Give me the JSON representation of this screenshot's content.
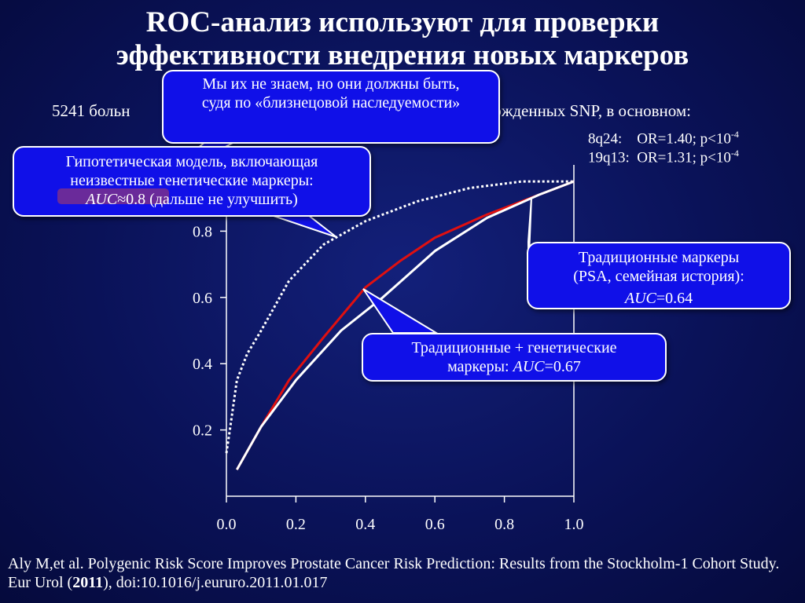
{
  "title_line1": "ROC-анализ используют для проверки",
  "title_line2": "эффективности внедрения новых маркеров",
  "subtitle_left": "5241 больн",
  "subtitle_right": "ержденных SNP, в основном:",
  "snp": [
    {
      "locus": "8q24:",
      "or": "OR=1.40; p<10",
      "exp": "-4"
    },
    {
      "locus": "19q13:",
      "or": "OR=1.31; p<10",
      "exp": "-4"
    }
  ],
  "callouts": {
    "unknown": "Мы их не знаем, но они должны быть, судя по «близнецовой наследуемости»",
    "hypo_line1": "Гипотетическая модель, включающая",
    "hypo_line2": "неизвестные генетические маркеры:",
    "hypo_auc_label": "AUC",
    "hypo_auc_value": "≈0.8 (дальше не улучшить)",
    "trad_line1": "Традиционные маркеры",
    "trad_line2": "(PSA, семейная история):",
    "trad_auc_label": "AUC",
    "trad_auc_value": "=0.64",
    "combo_line1": "Традиционные + генетические",
    "combo_line2": "маркеры:",
    "combo_auc_label": "AUC",
    "combo_auc_value": "=0.67"
  },
  "citation_text": "Aly M,et al. Polygenic Risk Score Improves Prostate Cancer Risk Prediction: Results from the Stockholm-1  Cohort Study. Eur Urol (",
  "citation_year": "2011",
  "citation_tail": "), doi:10.1016/j.eururo.2011.01.017",
  "colors": {
    "background": "#0a1258",
    "callout": "#1010e8",
    "red_curve": "#e01010",
    "white_curve": "#ffffff"
  },
  "chart_data": {
    "type": "line",
    "xlim": [
      0.0,
      1.0
    ],
    "ylim": [
      0.0,
      1.0
    ],
    "x_ticks": [
      "0.0",
      "0.2",
      "0.4",
      "0.6",
      "0.8",
      "1.0"
    ],
    "y_ticks": [
      "0.2",
      "0.4",
      "0.6",
      "0.8"
    ],
    "series": [
      {
        "style": "dotted",
        "color": "#ffffff",
        "x": [
          0.0,
          0.01,
          0.03,
          0.06,
          0.1,
          0.18,
          0.28,
          0.4,
          0.55,
          0.7,
          0.85,
          1.0
        ],
        "y": [
          0.13,
          0.2,
          0.35,
          0.43,
          0.5,
          0.65,
          0.76,
          0.83,
          0.89,
          0.93,
          0.95,
          0.95
        ]
      },
      {
        "style": "solid",
        "color": "#e01010",
        "x": [
          0.03,
          0.1,
          0.18,
          0.28,
          0.4,
          0.5,
          0.6,
          0.75,
          0.9,
          1.0
        ],
        "y": [
          0.08,
          0.21,
          0.35,
          0.48,
          0.63,
          0.71,
          0.78,
          0.85,
          0.91,
          0.95
        ]
      },
      {
        "style": "solid",
        "color": "#ffffff",
        "x": [
          0.03,
          0.1,
          0.2,
          0.33,
          0.45,
          0.6,
          0.75,
          0.9,
          1.0
        ],
        "y": [
          0.08,
          0.21,
          0.35,
          0.5,
          0.6,
          0.74,
          0.84,
          0.91,
          0.95
        ]
      }
    ]
  }
}
